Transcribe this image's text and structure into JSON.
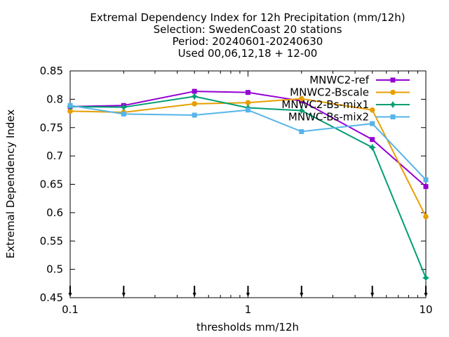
{
  "chart_data": {
    "type": "line",
    "title_lines": [
      "Extremal Dependency Index  for 12h Precipitation (mm/12h)",
      "Selection: SwedenCoast     20 stations",
      "Period: 20240601-20240630",
      "Used 00,06,12,18 + 12-00"
    ],
    "xlabel": "thresholds mm/12h",
    "ylabel": "Extremal Dependency Index",
    "x_scale": "log",
    "xlim": [
      0.1,
      10
    ],
    "ylim": [
      0.45,
      0.85
    ],
    "x_ticks": [
      {
        "v": 0.1,
        "label": "0.1"
      },
      {
        "v": 1,
        "label": "1"
      },
      {
        "v": 10,
        "label": "10"
      }
    ],
    "y_ticks": [
      {
        "v": 0.45,
        "label": "0.45"
      },
      {
        "v": 0.5,
        "label": "0.5"
      },
      {
        "v": 0.55,
        "label": "0.55"
      },
      {
        "v": 0.6,
        "label": "0.6"
      },
      {
        "v": 0.65,
        "label": "0.65"
      },
      {
        "v": 0.7,
        "label": "0.7"
      },
      {
        "v": 0.75,
        "label": "0.75"
      },
      {
        "v": 0.8,
        "label": "0.8"
      },
      {
        "v": 0.85,
        "label": "0.85"
      }
    ],
    "x": [
      0.1,
      0.2,
      0.5,
      1,
      2,
      5,
      10
    ],
    "series": [
      {
        "name": "MNWC2-ref",
        "color": "#9400d3",
        "marker": "square",
        "values": [
          0.787,
          0.789,
          0.814,
          0.812,
          0.797,
          0.729,
          0.646
        ]
      },
      {
        "name": "MNWC2-Bscale",
        "color": "#e69f00",
        "marker": "circle",
        "values": [
          0.779,
          0.777,
          0.792,
          0.794,
          0.801,
          0.781,
          0.593
        ]
      },
      {
        "name": "MNWC2-Bs-mix1",
        "color": "#009e73",
        "marker": "star",
        "values": [
          0.787,
          0.786,
          0.805,
          0.785,
          0.78,
          0.715,
          0.485
        ]
      },
      {
        "name": "MNWC-Bs-mix2",
        "color": "#56b4e9",
        "marker": "box",
        "values": [
          0.789,
          0.774,
          0.772,
          0.781,
          0.743,
          0.757,
          0.658
        ]
      }
    ],
    "threshold_markers": [
      0.1,
      0.2,
      0.5,
      1,
      2,
      5,
      10
    ],
    "grid": false,
    "legend_position": "top-right"
  }
}
